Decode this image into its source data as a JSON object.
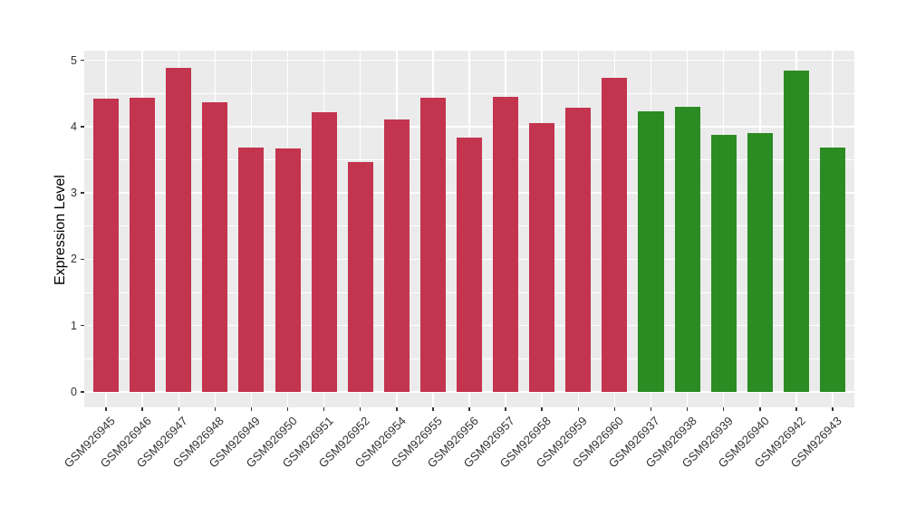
{
  "chart_data": {
    "type": "bar",
    "title": "",
    "xlabel": "",
    "ylabel": "Expression Level",
    "ylim": [
      0,
      5.15
    ],
    "yticks": [
      0,
      1,
      2,
      3,
      4,
      5
    ],
    "grid": true,
    "legend": false,
    "categories": [
      "GSM926945",
      "GSM926946",
      "GSM926947",
      "GSM926948",
      "GSM926949",
      "GSM926950",
      "GSM926951",
      "GSM926952",
      "GSM926954",
      "GSM926955",
      "GSM926956",
      "GSM926957",
      "GSM926958",
      "GSM926959",
      "GSM926960",
      "GSM926937",
      "GSM926938",
      "GSM926939",
      "GSM926940",
      "GSM926942",
      "GSM926943"
    ],
    "values": [
      4.42,
      4.43,
      4.89,
      4.36,
      3.68,
      3.67,
      4.22,
      3.46,
      4.11,
      4.43,
      3.83,
      4.45,
      4.05,
      4.28,
      4.73,
      4.23,
      4.3,
      3.87,
      3.9,
      4.84,
      3.68
    ],
    "groups": [
      "red",
      "red",
      "red",
      "red",
      "red",
      "red",
      "red",
      "red",
      "red",
      "red",
      "red",
      "red",
      "red",
      "red",
      "red",
      "green",
      "green",
      "green",
      "green",
      "green",
      "green"
    ],
    "group_colors": {
      "red": "#C3344E",
      "green": "#2B8C23"
    }
  },
  "style": {
    "panel_bg": "#EBEBEB",
    "grid_color": "#FFFFFF",
    "tick_color": "#333333",
    "axis_text_color": "#333333",
    "title_text_color": "#000000",
    "page_bg": "#FFFFFF"
  }
}
